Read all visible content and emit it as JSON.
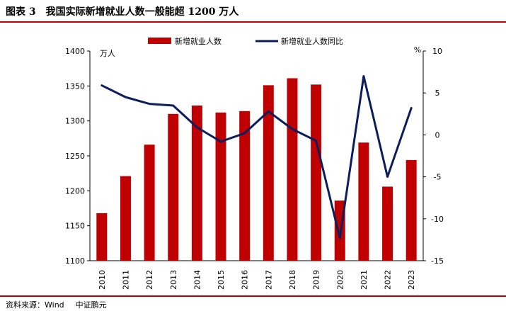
{
  "header": {
    "figure_number": "图表 3",
    "title": "我国实际新增就业人数一般能超 1200 万人"
  },
  "footer": {
    "source_label": "资料来源：Wind",
    "publisher": "中证鹏元"
  },
  "colors": {
    "bar": "#c00000",
    "line": "#0c1f5c",
    "rule": "#c00000"
  },
  "chart_data": {
    "type": "bar",
    "categories": [
      "2010",
      "2011",
      "2012",
      "2013",
      "2014",
      "2015",
      "2016",
      "2017",
      "2018",
      "2019",
      "2020",
      "2021",
      "2022",
      "2023"
    ],
    "series": [
      {
        "name": "新增就业人数",
        "type": "bar",
        "axis": "left",
        "values": [
          1168,
          1221,
          1266,
          1310,
          1322,
          1312,
          1314,
          1351,
          1361,
          1352,
          1186,
          1269,
          1206,
          1244
        ]
      },
      {
        "name": "新增就业人数同比",
        "type": "line",
        "axis": "right",
        "values": [
          5.9,
          4.5,
          3.7,
          3.5,
          0.9,
          -0.8,
          0.2,
          2.8,
          0.7,
          -0.7,
          -12.3,
          7.0,
          -5.0,
          3.2
        ]
      }
    ],
    "y_left": {
      "label": "万人",
      "ylim": [
        1100,
        1400
      ],
      "ticks": [
        1100,
        1150,
        1200,
        1250,
        1300,
        1350,
        1400
      ]
    },
    "y_right": {
      "label": "%",
      "ylim": [
        -15,
        10
      ],
      "ticks": [
        -15,
        -10,
        -5,
        0,
        5,
        10
      ]
    },
    "legend_position": "top-center",
    "grid": false
  }
}
